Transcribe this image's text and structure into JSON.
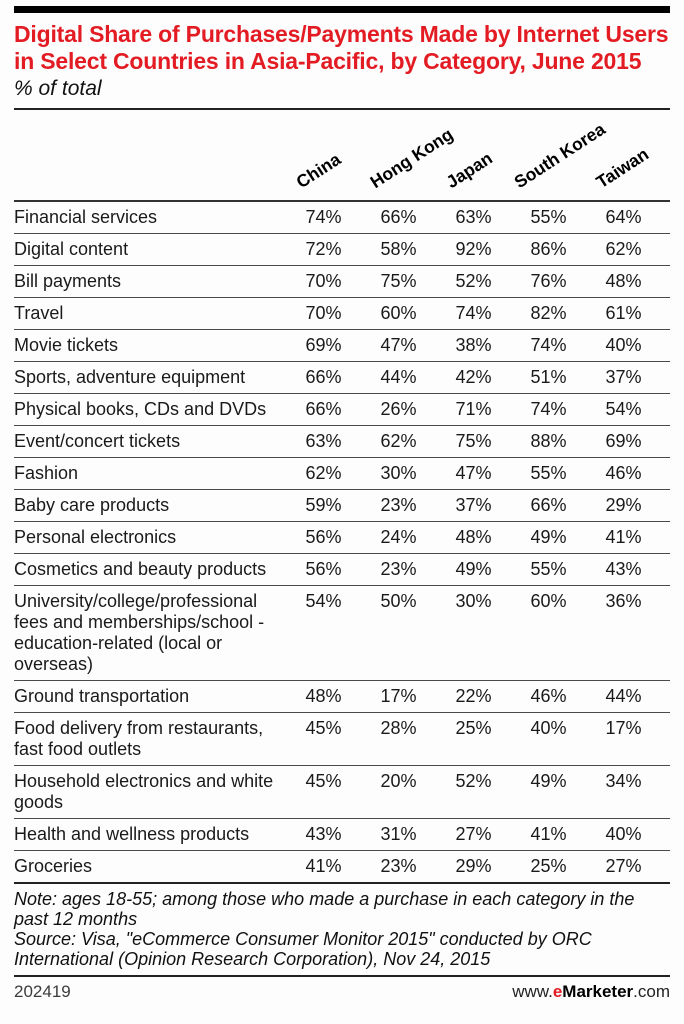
{
  "accent_color": "#e31b23",
  "chart_data": {
    "type": "table",
    "title": "Digital Share of Purchases/Payments Made by Internet Users in Select Countries in Asia-Pacific, by Category, June 2015",
    "unit_label": "% of total",
    "columns": [
      "China",
      "Hong Kong",
      "Japan",
      "South Korea",
      "Taiwan"
    ],
    "rows": [
      {
        "category": "Financial services",
        "values": [
          74,
          66,
          63,
          55,
          64
        ]
      },
      {
        "category": "Digital content",
        "values": [
          72,
          58,
          92,
          86,
          62
        ]
      },
      {
        "category": "Bill payments",
        "values": [
          70,
          75,
          52,
          76,
          48
        ]
      },
      {
        "category": "Travel",
        "values": [
          70,
          60,
          74,
          82,
          61
        ]
      },
      {
        "category": "Movie tickets",
        "values": [
          69,
          47,
          38,
          74,
          40
        ]
      },
      {
        "category": "Sports, adventure equipment",
        "values": [
          66,
          44,
          42,
          51,
          37
        ]
      },
      {
        "category": "Physical books, CDs and DVDs",
        "values": [
          66,
          26,
          71,
          74,
          54
        ]
      },
      {
        "category": "Event/concert tickets",
        "values": [
          63,
          62,
          75,
          88,
          69
        ]
      },
      {
        "category": "Fashion",
        "values": [
          62,
          30,
          47,
          55,
          46
        ]
      },
      {
        "category": "Baby care products",
        "values": [
          59,
          23,
          37,
          66,
          29
        ]
      },
      {
        "category": "Personal electronics",
        "values": [
          56,
          24,
          48,
          49,
          41
        ]
      },
      {
        "category": "Cosmetics and beauty products",
        "values": [
          56,
          23,
          49,
          55,
          43
        ]
      },
      {
        "category": "University/college/professional fees and memberships/school - education-related (local or overseas)",
        "values": [
          54,
          50,
          30,
          60,
          36
        ]
      },
      {
        "category": "Ground transportation",
        "values": [
          48,
          17,
          22,
          46,
          44
        ]
      },
      {
        "category": "Food delivery from restaurants, fast food outlets",
        "values": [
          45,
          28,
          25,
          40,
          17
        ]
      },
      {
        "category": "Household electronics and white goods",
        "values": [
          45,
          20,
          52,
          49,
          34
        ]
      },
      {
        "category": "Health and wellness products",
        "values": [
          43,
          31,
          27,
          41,
          40
        ]
      },
      {
        "category": "Groceries",
        "values": [
          41,
          23,
          29,
          25,
          27
        ]
      }
    ]
  },
  "notes": {
    "note": "Note: ages 18-55; among those who made a purchase in each category in the past 12 months",
    "source": "Source: Visa, \"eCommerce Consumer Monitor 2015\" conducted by ORC International (Opinion Research Corporation), Nov 24, 2015"
  },
  "footer": {
    "chart_id": "202419",
    "site_prefix": "www.",
    "site_brand_e": "e",
    "site_brand_rest": "Marketer",
    "site_suffix": ".com"
  }
}
